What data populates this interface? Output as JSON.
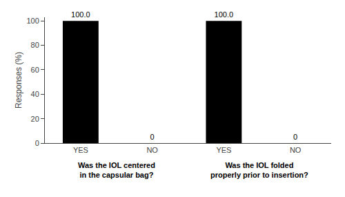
{
  "chart_data": {
    "type": "bar",
    "categories": [
      "YES",
      "NO",
      "YES",
      "NO"
    ],
    "values": [
      100.0,
      0,
      100.0,
      0
    ],
    "value_labels": [
      "100.0",
      "0",
      "100.0",
      "0"
    ],
    "data_labels": true,
    "color": "#000000",
    "ylabel": "Responses (%)",
    "ylim": [
      0,
      103
    ],
    "yticks": [
      0,
      20,
      40,
      60,
      80,
      100
    ],
    "grid": false,
    "annotations": [
      {
        "text": "Was the IOL centered\nin the capsular bag?",
        "x": [
          0,
          1
        ]
      },
      {
        "text": "Was the IOL folded\nproperly prior to insertion?",
        "x": [
          2,
          3
        ]
      }
    ]
  }
}
